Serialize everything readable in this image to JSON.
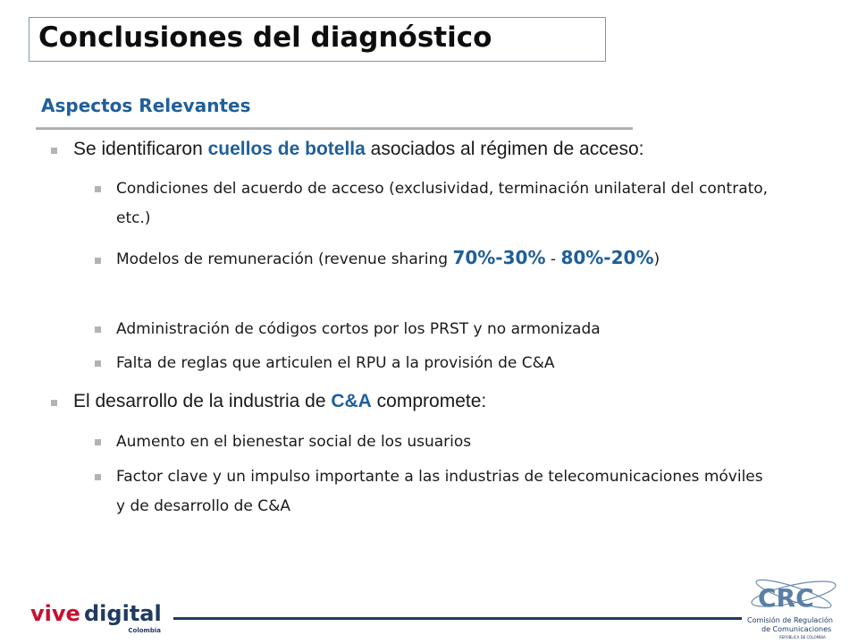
{
  "title": "Conclusiones del diagnóstico",
  "subtitle": "Aspectos Relevantes",
  "b1": {
    "pre": "Se identificaron ",
    "hl": "cuellos de botella",
    "post": " asociados al régimen de acceso:"
  },
  "b1_items": {
    "i1": "Condiciones del acuerdo de acceso (exclusividad, terminación unilateral del contrato, etc.)",
    "i2_pre": "Modelos de remuneración (revenue sharing ",
    "i2_hl1": "70%-30%",
    "i2_mid": " - ",
    "i2_hl2": "80%-20%",
    "i2_post": ")",
    "i3": "Administración de códigos cortos por los PRST y no armonizada",
    "i4": "Falta de reglas que articulen el RPU a la provisión de C&A"
  },
  "b2": {
    "pre": "El desarrollo de la industria de ",
    "hl": "C&A",
    "post": " compromete:"
  },
  "b2_items": {
    "i1": "Aumento en el bienestar social de los usuarios",
    "i2": "Factor clave y un impulso importante a las industrias de telecomunicaciones móviles y de desarrollo de C&A"
  },
  "footer": {
    "vive": "vive",
    "digital": "digital",
    "country": "Colombia",
    "crc_abbr": "CRC",
    "crc_line1": "Comisión de Regulación",
    "crc_line2": "de Comunicaciones",
    "crc_line3": "REPÚBLICA DE COLOMBIA"
  },
  "colors": {
    "accent": "#1f5f9a",
    "bullet": "#b3b3b3",
    "footer_rule": "#1f3b63",
    "vive_red": "#c8102e",
    "digital_navy": "#1f3b63"
  }
}
